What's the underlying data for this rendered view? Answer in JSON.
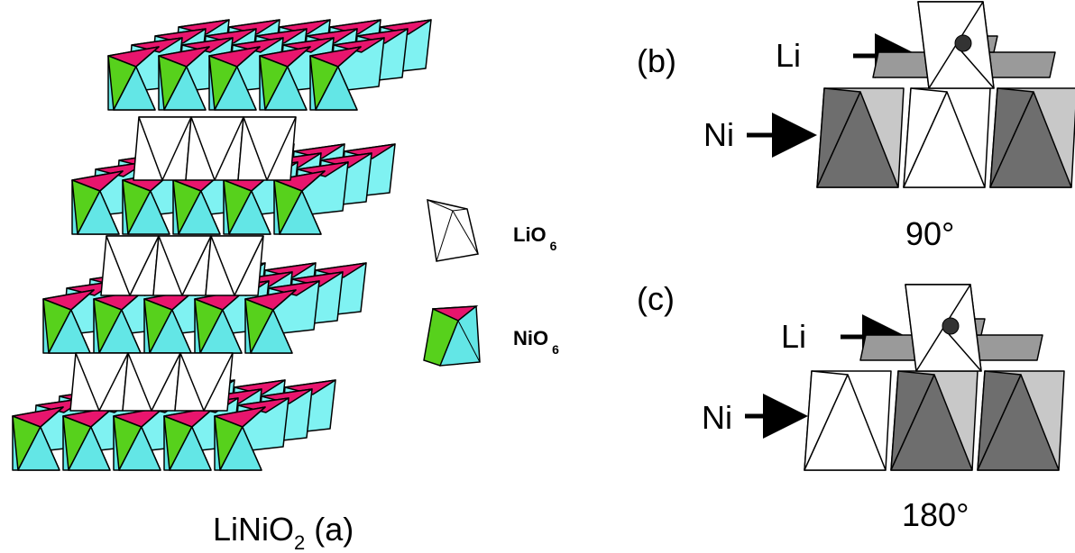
{
  "colors": {
    "cyan": "#63e6e6",
    "cyan_light": "#7ff2f2",
    "magenta": "#e8156d",
    "green": "#57d11c",
    "white": "#ffffff",
    "dark_gray": "#6e6e6e",
    "mid_gray": "#9a9a9a",
    "light_gray": "#c8c8c8",
    "stroke": "#000000"
  },
  "panel_a": {
    "formula_main": "LiNiO",
    "formula_sub": "2",
    "tag": "(a)"
  },
  "legend": {
    "lio6": {
      "main": "LiO",
      "sub": "6"
    },
    "nio6": {
      "main": "NiO",
      "sub": "6"
    }
  },
  "panel_b": {
    "tag": "(b)",
    "li_label": "Li",
    "ni_label": "Ni",
    "angle": "90°"
  },
  "panel_c": {
    "tag": "(c)",
    "li_label": "Li",
    "ni_label": "Ni",
    "angle": "180°"
  }
}
